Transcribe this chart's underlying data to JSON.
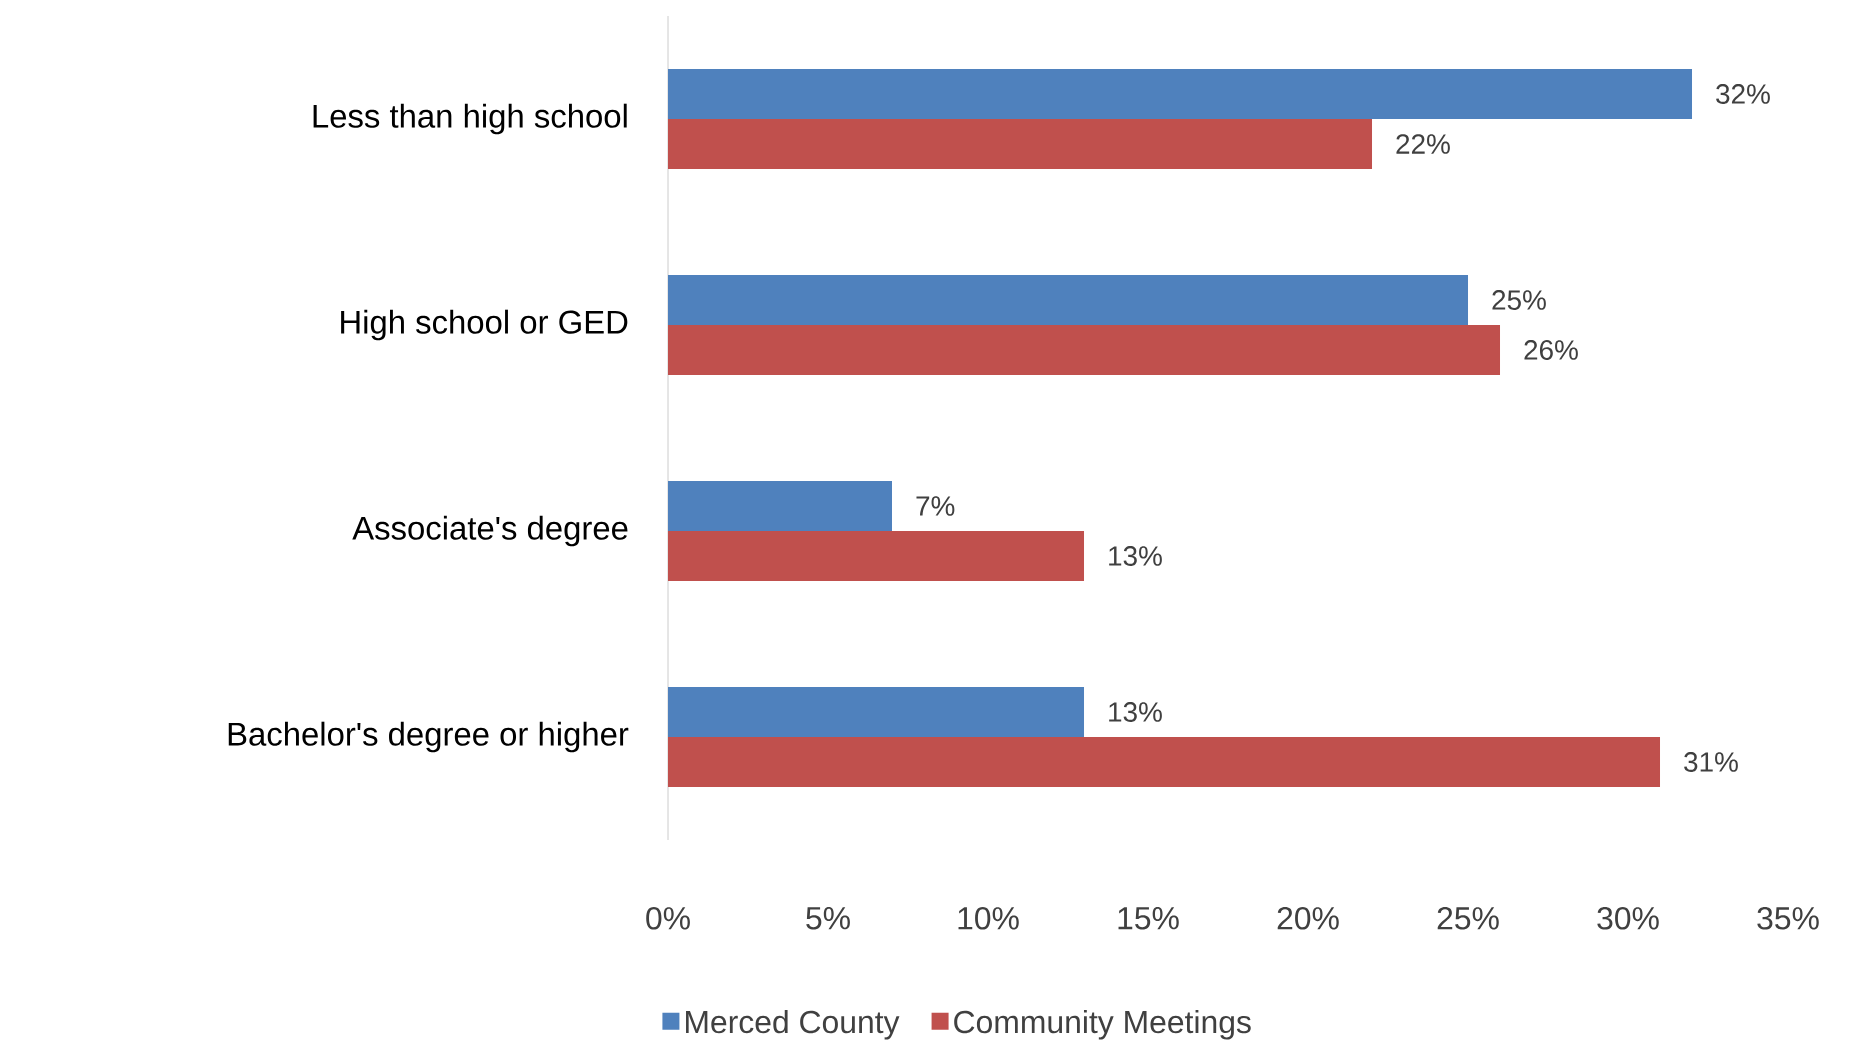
{
  "chart_data": {
    "type": "bar",
    "orientation": "horizontal",
    "categories": [
      "Less than high school",
      "High school or GED",
      "Associate's degree",
      "Bachelor's degree or higher"
    ],
    "series": [
      {
        "name": "Merced County",
        "color": "#4f81bd",
        "values": [
          32,
          25,
          7,
          13
        ],
        "value_labels": [
          "32%",
          "25%",
          "7%",
          "13%"
        ]
      },
      {
        "name": "Community Meetings",
        "color": "#c0504d",
        "values": [
          22,
          26,
          13,
          31
        ],
        "value_labels": [
          "22%",
          "26%",
          "13%",
          "31%"
        ]
      }
    ],
    "xlim": [
      0,
      35
    ],
    "xticks": [
      {
        "value": 0,
        "label": "0%"
      },
      {
        "value": 5,
        "label": "5%"
      },
      {
        "value": 10,
        "label": "10%"
      },
      {
        "value": 15,
        "label": "15%"
      },
      {
        "value": 20,
        "label": "20%"
      },
      {
        "value": 25,
        "label": "25%"
      },
      {
        "value": 30,
        "label": "30%"
      },
      {
        "value": 35,
        "label": "35%"
      }
    ],
    "legend": "bottom"
  }
}
